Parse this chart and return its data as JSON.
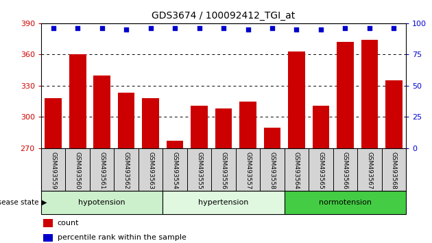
{
  "title": "GDS3674 / 100092412_TGI_at",
  "categories": [
    "GSM493559",
    "GSM493560",
    "GSM493561",
    "GSM493562",
    "GSM493563",
    "GSM493554",
    "GSM493555",
    "GSM493556",
    "GSM493557",
    "GSM493558",
    "GSM493564",
    "GSM493565",
    "GSM493566",
    "GSM493567",
    "GSM493568"
  ],
  "bar_values": [
    318,
    360,
    340,
    323,
    318,
    277,
    311,
    308,
    315,
    290,
    363,
    311,
    372,
    374,
    335
  ],
  "percentile_values": [
    96,
    96,
    96,
    95,
    96,
    96,
    96,
    96,
    95,
    96,
    95,
    95,
    96,
    96,
    96
  ],
  "bar_color": "#cc0000",
  "percentile_color": "#0000cc",
  "ylim_left": [
    270,
    390
  ],
  "ylim_right": [
    0,
    100
  ],
  "yticks_left": [
    270,
    300,
    330,
    360,
    390
  ],
  "yticks_right": [
    0,
    25,
    50,
    75,
    100
  ],
  "grid_ticks": [
    300,
    330,
    360
  ],
  "groups": [
    {
      "label": "hypotension",
      "start": 0,
      "end": 5,
      "color": "#ccf0cc"
    },
    {
      "label": "hypertension",
      "start": 5,
      "end": 10,
      "color": "#e0f8e0"
    },
    {
      "label": "normotension",
      "start": 10,
      "end": 15,
      "color": "#44cc44"
    }
  ],
  "disease_state_label": "disease state",
  "legend_count_label": "count",
  "legend_pct_label": "percentile rank within the sample",
  "bar_color_legend": "#cc0000",
  "pct_color_legend": "#0000cc",
  "bar_width": 0.7,
  "tick_bg_color": "#d4d4d4",
  "fig_width": 6.3,
  "fig_height": 3.54
}
